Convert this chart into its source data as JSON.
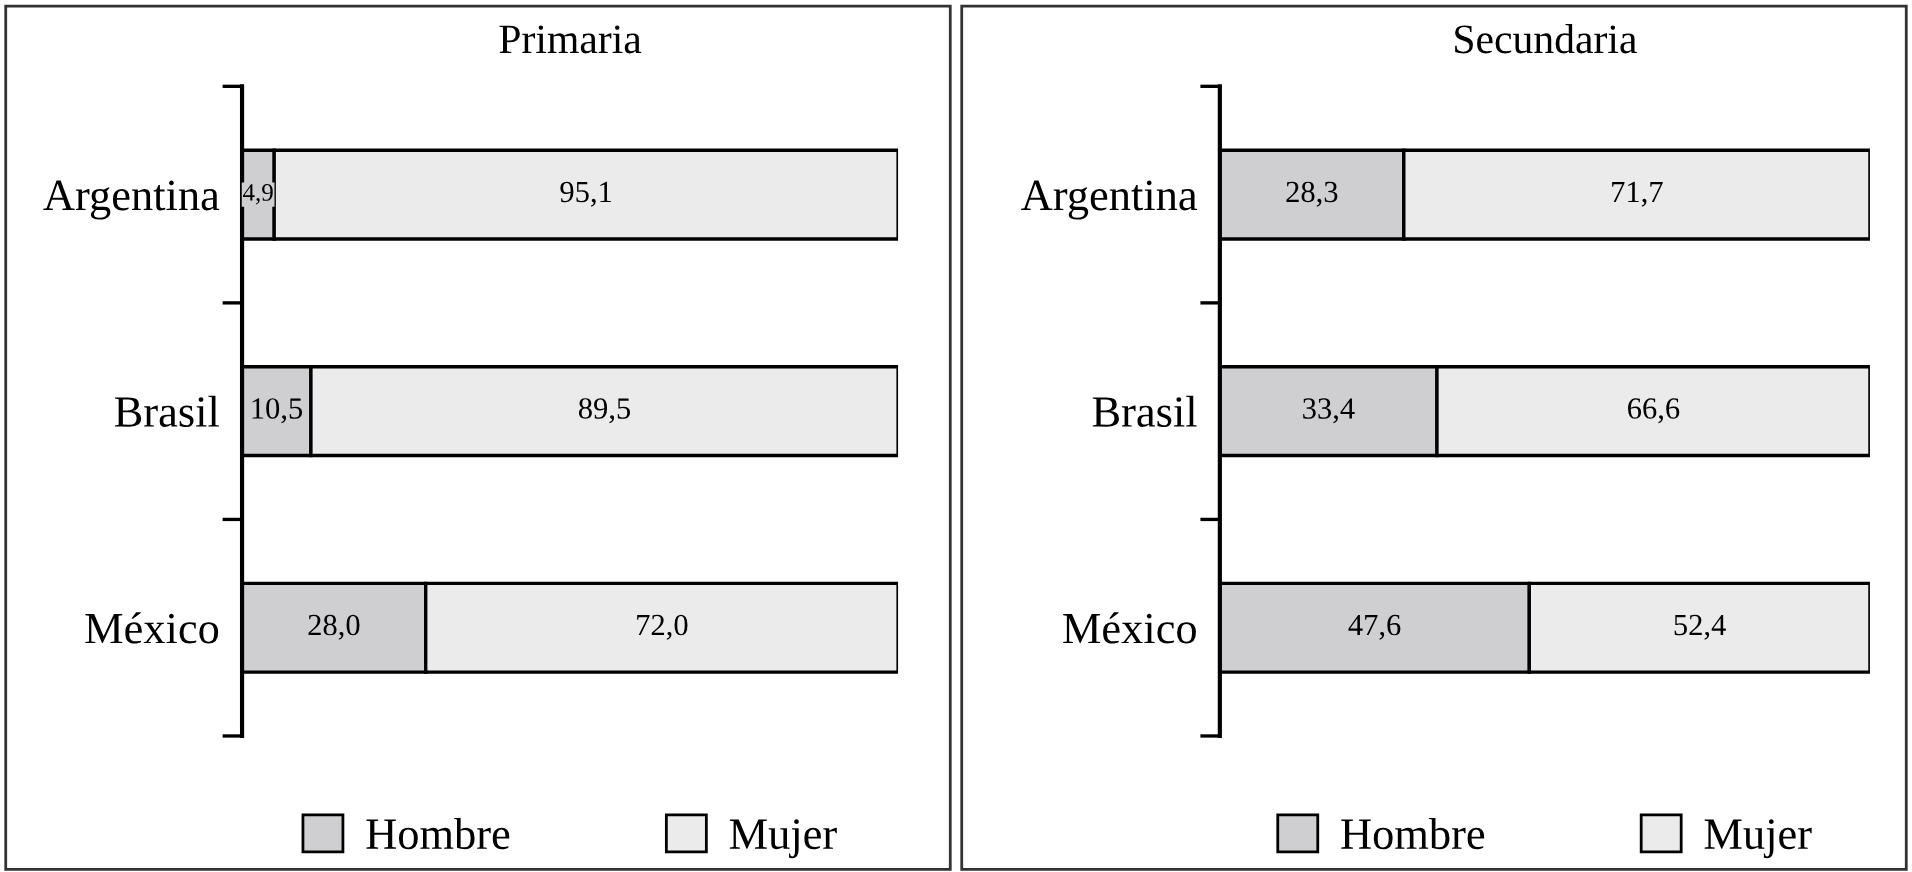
{
  "chart_data": [
    {
      "type": "bar",
      "title": "Primaria",
      "orientation": "horizontal",
      "stacked": true,
      "legend": "bottom",
      "grid": false,
      "categories": [
        "Argentina",
        "Brasil",
        "México"
      ],
      "series": [
        {
          "name": "Hombre",
          "color": "#cfcfd1",
          "values": [
            4.9,
            10.5,
            28.0
          ],
          "value_labels": [
            "4,9",
            "10,5",
            "28,0"
          ]
        },
        {
          "name": "Mujer",
          "color": "#ebebeb",
          "values": [
            95.1,
            89.5,
            72.0
          ],
          "value_labels": [
            "95,1",
            "89,5",
            "72,0"
          ]
        }
      ]
    },
    {
      "type": "bar",
      "title": "Secundaria",
      "orientation": "horizontal",
      "stacked": true,
      "legend": "bottom",
      "grid": false,
      "categories": [
        "Argentina",
        "Brasil",
        "México"
      ],
      "series": [
        {
          "name": "Hombre",
          "color": "#cfcfd1",
          "values": [
            28.3,
            33.4,
            47.6
          ],
          "value_labels": [
            "28,3",
            "33,4",
            "47,6"
          ]
        },
        {
          "name": "Mujer",
          "color": "#ebebeb",
          "values": [
            71.7,
            66.6,
            52.4
          ],
          "value_labels": [
            "71,7",
            "66,6",
            "52,4"
          ]
        }
      ]
    }
  ]
}
